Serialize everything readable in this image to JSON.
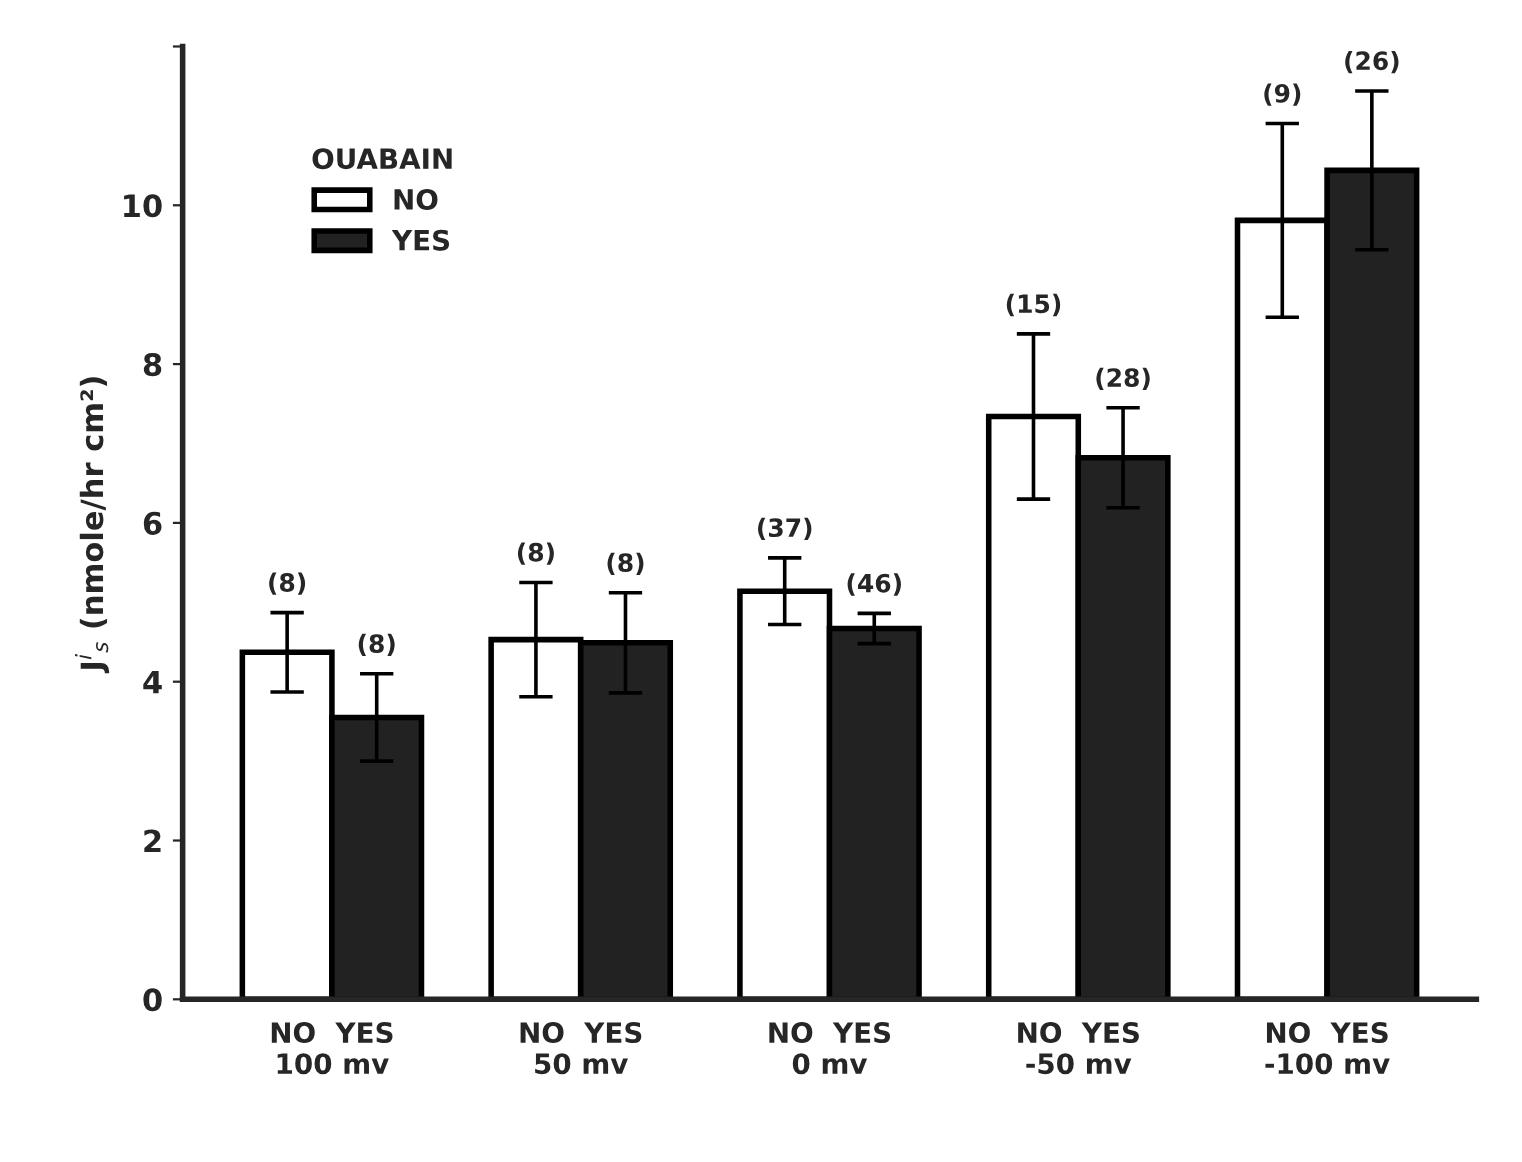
{
  "chart_data": {
    "type": "bar",
    "ylabel": "J$^{i}$$_{s}$ (nmole/hr cm²)",
    "categories": [
      "NO  YES\n100 mv",
      "NO  YES\n50 mv",
      "NO  YES\n0 mv",
      "NO  YES\n-50 mv",
      "NO  YES\n-100 mv"
    ],
    "series": [
      {
        "name": "NO",
        "color": "#ffffff",
        "values": [
          4.37,
          4.53,
          5.14,
          7.34,
          9.81
        ],
        "errors": [
          0.5,
          0.72,
          0.42,
          1.04,
          1.22
        ]
      },
      {
        "name": "YES",
        "color": "#222222",
        "values": [
          3.55,
          4.49,
          4.67,
          6.82,
          10.44
        ],
        "errors": [
          0.55,
          0.63,
          0.19,
          0.63,
          1.0
        ]
      }
    ],
    "legend_title": "OUABAIN",
    "legend": "top left",
    "ylim": [
      0,
      12
    ],
    "yticks": [
      0,
      2,
      4,
      6,
      8,
      10,
      {
        "value": 12,
        "label": null
      }
    ],
    "grid": false,
    "annotations": [
      "(8)",
      "(8)",
      "(8)",
      "(8)",
      "(37)",
      "(46)",
      "(15)",
      "(28)",
      "(9)",
      "(26)"
    ]
  }
}
